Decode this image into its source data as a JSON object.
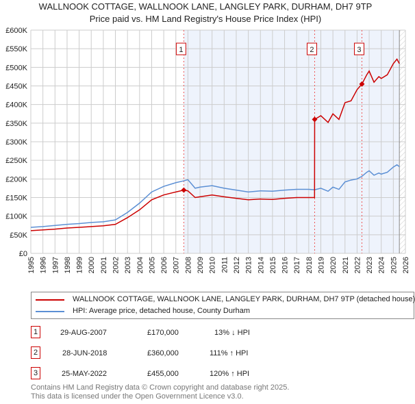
{
  "chart_data": {
    "type": "line",
    "title": "WALLNOOK COTTAGE, WALLNOOK LANE, LANGLEY PARK, DURHAM, DH7 9TP",
    "subtitle": "Price paid vs. HM Land Registry's House Price Index (HPI)",
    "xlim": [
      1995,
      2026
    ],
    "ylim": [
      0,
      600000
    ],
    "x_ticks": [
      "1995",
      "1996",
      "1997",
      "1998",
      "1999",
      "2000",
      "2001",
      "2002",
      "2003",
      "2004",
      "2005",
      "2006",
      "2007",
      "2008",
      "2009",
      "2010",
      "2011",
      "2012",
      "2013",
      "2014",
      "2015",
      "2016",
      "2017",
      "2018",
      "2019",
      "2020",
      "2021",
      "2022",
      "2023",
      "2024",
      "2025",
      "2026"
    ],
    "y_ticks": [
      {
        "v": 0,
        "l": "£0"
      },
      {
        "v": 50000,
        "l": "£50K"
      },
      {
        "v": 100000,
        "l": "£100K"
      },
      {
        "v": 150000,
        "l": "£150K"
      },
      {
        "v": 200000,
        "l": "£200K"
      },
      {
        "v": 250000,
        "l": "£250K"
      },
      {
        "v": 300000,
        "l": "£300K"
      },
      {
        "v": 350000,
        "l": "£350K"
      },
      {
        "v": 400000,
        "l": "£400K"
      },
      {
        "v": 450000,
        "l": "£450K"
      },
      {
        "v": 500000,
        "l": "£500K"
      },
      {
        "v": 550000,
        "l": "£550K"
      },
      {
        "v": 600000,
        "l": "£600K"
      }
    ],
    "grid": true,
    "series": [
      {
        "name": "WALLNOOK COTTAGE, WALLNOOK LANE, LANGLEY PARK, DURHAM, DH7 9TP (detached house)",
        "color": "#cc0000",
        "x": [
          1995,
          1996,
          1997,
          1998,
          1999,
          2000,
          2001,
          2002,
          2003,
          2004,
          2005,
          2006,
          2007,
          2007.66,
          2008,
          2008.6,
          2009,
          2010,
          2011,
          2012,
          2013,
          2014,
          2015,
          2016,
          2017,
          2018,
          2018.48,
          2018.49,
          2019,
          2019.6,
          2020,
          2020.5,
          2021,
          2021.5,
          2022,
          2022.4,
          2022.8,
          2023,
          2023.4,
          2023.8,
          2024,
          2024.5,
          2025,
          2025.3,
          2025.5
        ],
        "y": [
          61000,
          63000,
          65000,
          68000,
          70000,
          72000,
          74000,
          78000,
          96000,
          117000,
          144000,
          157000,
          165000,
          170000,
          168000,
          150000,
          152000,
          157000,
          152000,
          148000,
          144000,
          146000,
          145000,
          148000,
          150000,
          150000,
          150000,
          360000,
          370000,
          352000,
          375000,
          360000,
          405000,
          410000,
          440000,
          455000,
          480000,
          490000,
          460000,
          475000,
          470000,
          480000,
          510000,
          522000,
          510000
        ]
      },
      {
        "name": "HPI: Average price, detached house, County Durham",
        "color": "#5b8fd4",
        "x": [
          1995,
          1996,
          1997,
          1998,
          1999,
          2000,
          2001,
          2002,
          2003,
          2004,
          2005,
          2006,
          2007,
          2007.66,
          2008,
          2008.6,
          2009,
          2010,
          2011,
          2012,
          2013,
          2014,
          2015,
          2016,
          2017,
          2018,
          2018.49,
          2019,
          2019.6,
          2020,
          2020.5,
          2021,
          2021.5,
          2022,
          2022.4,
          2022.8,
          2023,
          2023.4,
          2023.8,
          2024,
          2024.5,
          2025,
          2025.3,
          2025.5
        ],
        "y": [
          70000,
          72000,
          75000,
          78000,
          80000,
          83000,
          85000,
          90000,
          110000,
          135000,
          165000,
          180000,
          190000,
          195000,
          198000,
          175000,
          178000,
          182000,
          175000,
          170000,
          165000,
          168000,
          167000,
          170000,
          172000,
          172000,
          171000,
          175000,
          167000,
          178000,
          172000,
          192000,
          197000,
          200000,
          207000,
          218000,
          222000,
          210000,
          216000,
          213000,
          218000,
          232000,
          238000,
          233000
        ]
      }
    ],
    "sales": [
      {
        "label": "1",
        "x": 2007.66,
        "y": 170000,
        "date": "29-AUG-2007",
        "price": "£170,000",
        "hpi": "13% ↓ HPI"
      },
      {
        "label": "2",
        "x": 2018.49,
        "y": 360000,
        "date": "28-JUN-2018",
        "price": "£360,000",
        "hpi": "111% ↑ HPI"
      },
      {
        "label": "3",
        "x": 2022.4,
        "y": 455000,
        "date": "25-MAY-2022",
        "price": "£455,000",
        "hpi": "120% ↑ HPI"
      }
    ],
    "legend_placement": "below"
  },
  "footer": [
    "Contains HM Land Registry data © Crown copyright and database right 2025.",
    "This data is licensed under the Open Government Licence v3.0."
  ]
}
